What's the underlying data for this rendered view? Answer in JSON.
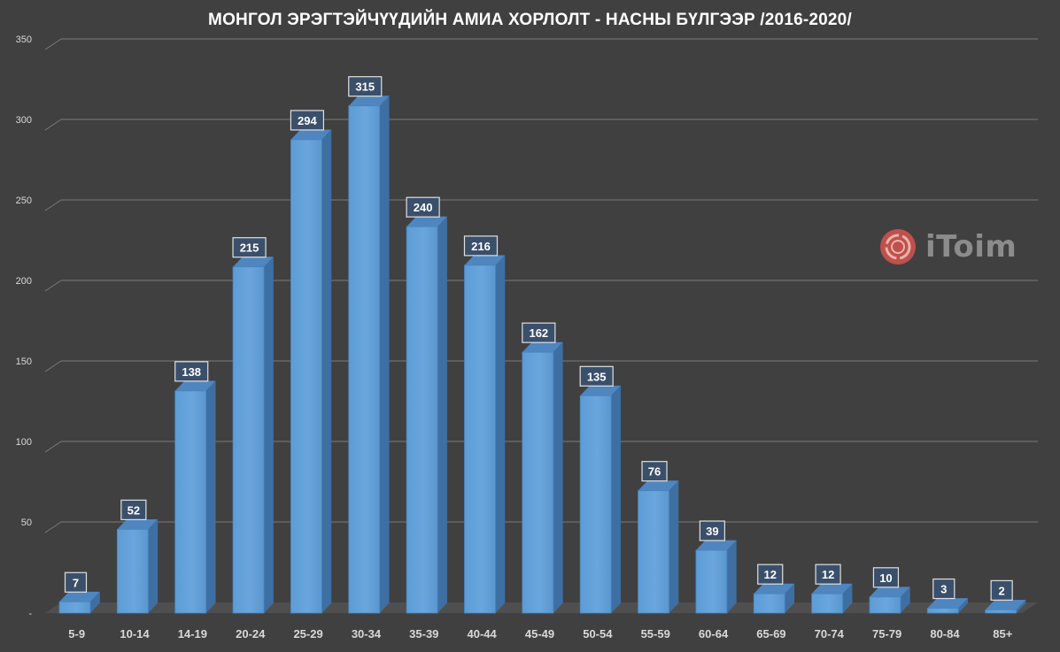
{
  "chart_data": {
    "type": "bar",
    "title": "МОНГОЛ ЭРЭГТЭЙЧҮҮДИЙН АМИА ХОРЛОЛТ - НАСНЫ БҮЛГЭЭР /2016-2020/",
    "categories": [
      "5-9",
      "10-14",
      "14-19",
      "20-24",
      "25-29",
      "30-34",
      "35-39",
      "40-44",
      "45-49",
      "50-54",
      "55-59",
      "60-64",
      "65-69",
      "70-74",
      "75-79",
      "80-84",
      "85+"
    ],
    "values": [
      7,
      52,
      138,
      215,
      294,
      315,
      240,
      216,
      162,
      135,
      76,
      39,
      12,
      12,
      10,
      3,
      2
    ],
    "ylim": [
      0,
      350
    ],
    "yticks": [
      0,
      50,
      100,
      150,
      200,
      250,
      300,
      350
    ],
    "ytick_labels": [
      "-",
      "50",
      "100",
      "150",
      "200",
      "250",
      "300",
      "350"
    ],
    "grid": true,
    "bar_color": "#5b9bd5",
    "background_color": "#404040"
  },
  "watermark": {
    "text": "iToim",
    "icon": "itoim-logo-icon",
    "color": "#c0504d"
  }
}
